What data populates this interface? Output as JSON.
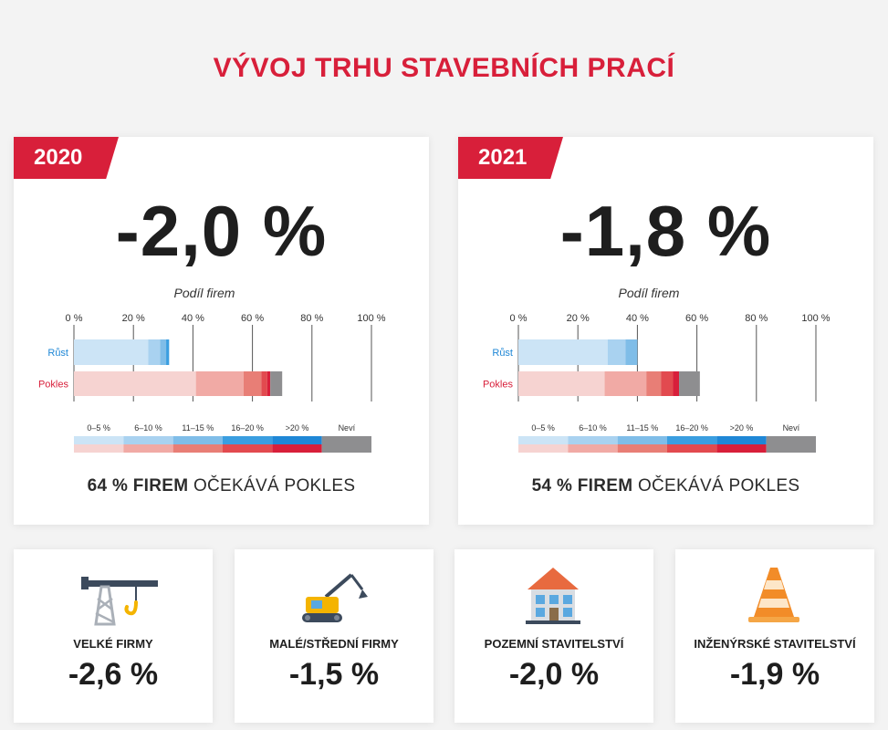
{
  "title": "VÝVOJ TRHU STAVEBNÍCH PRACÍ",
  "colors": {
    "accent": "#d81f3a",
    "growth": [
      "#cce4f6",
      "#a9d2f0",
      "#7fbde8",
      "#3a9ee0",
      "#1f87d6"
    ],
    "decline": [
      "#f6d3d1",
      "#f1aaa5",
      "#e87e76",
      "#e24a4f",
      "#d81f3a"
    ],
    "unknown": "#8e8e90"
  },
  "years": [
    {
      "year": "2020",
      "value": "-2,0 %",
      "bottom_strong": "64 % FIREM",
      "bottom_rest": "OČEKÁVÁ POKLES"
    },
    {
      "year": "2021",
      "value": "-1,8 %",
      "bottom_strong": "54 % FIREM",
      "bottom_rest": "OČEKÁVÁ POKLES"
    }
  ],
  "chart_data": [
    {
      "type": "bar",
      "orientation": "horizontal-stacked",
      "title": "Podíl firem",
      "categories": [
        "Růst",
        "Pokles"
      ],
      "xlim": [
        0,
        100
      ],
      "x_ticks": [
        "0 %",
        "20 %",
        "40 %",
        "60 %",
        "80 %",
        "100 %"
      ],
      "series": [
        {
          "name": "0–5 %",
          "values": [
            25,
            41
          ]
        },
        {
          "name": "6–10 %",
          "values": [
            4,
            16
          ]
        },
        {
          "name": "11–15 %",
          "values": [
            2,
            6
          ]
        },
        {
          "name": "16–20 %",
          "values": [
            1,
            2
          ]
        },
        {
          "name": ">20 %",
          "values": [
            0,
            1
          ]
        },
        {
          "name": "Neví",
          "values": [
            0,
            4
          ]
        }
      ],
      "legend": [
        "0–5 %",
        "6–10 %",
        "11–15 %",
        "16–20 %",
        ">20 %",
        "Neví"
      ]
    },
    {
      "type": "bar",
      "orientation": "horizontal-stacked",
      "title": "Podíl firem",
      "categories": [
        "Růst",
        "Pokles"
      ],
      "xlim": [
        0,
        100
      ],
      "x_ticks": [
        "0 %",
        "20 %",
        "40 %",
        "60 %",
        "80 %",
        "100 %"
      ],
      "series": [
        {
          "name": "0–5 %",
          "values": [
            30,
            29
          ]
        },
        {
          "name": "6–10 %",
          "values": [
            6,
            14
          ]
        },
        {
          "name": "11–15 %",
          "values": [
            4,
            5
          ]
        },
        {
          "name": "16–20 %",
          "values": [
            0,
            4
          ]
        },
        {
          "name": ">20 %",
          "values": [
            0,
            2
          ]
        },
        {
          "name": "Neví",
          "values": [
            0,
            7
          ]
        }
      ],
      "legend": [
        "0–5 %",
        "6–10 %",
        "11–15 %",
        "16–20 %",
        ">20 %",
        "Neví"
      ]
    }
  ],
  "segments": [
    {
      "label": "VELKÉ FIRMY",
      "value": "-2,6 %",
      "icon": "tower-crane-icon"
    },
    {
      "label": "MALÉ/STŘEDNÍ FIRMY",
      "value": "-1,5 %",
      "icon": "excavator-icon"
    },
    {
      "label": "POZEMNÍ STAVITELSTVÍ",
      "value": "-2,0 %",
      "icon": "house-icon"
    },
    {
      "label": "INŽENÝRSKÉ STAVITELSTVÍ",
      "value": "-1,9 %",
      "icon": "traffic-cone-icon"
    }
  ]
}
